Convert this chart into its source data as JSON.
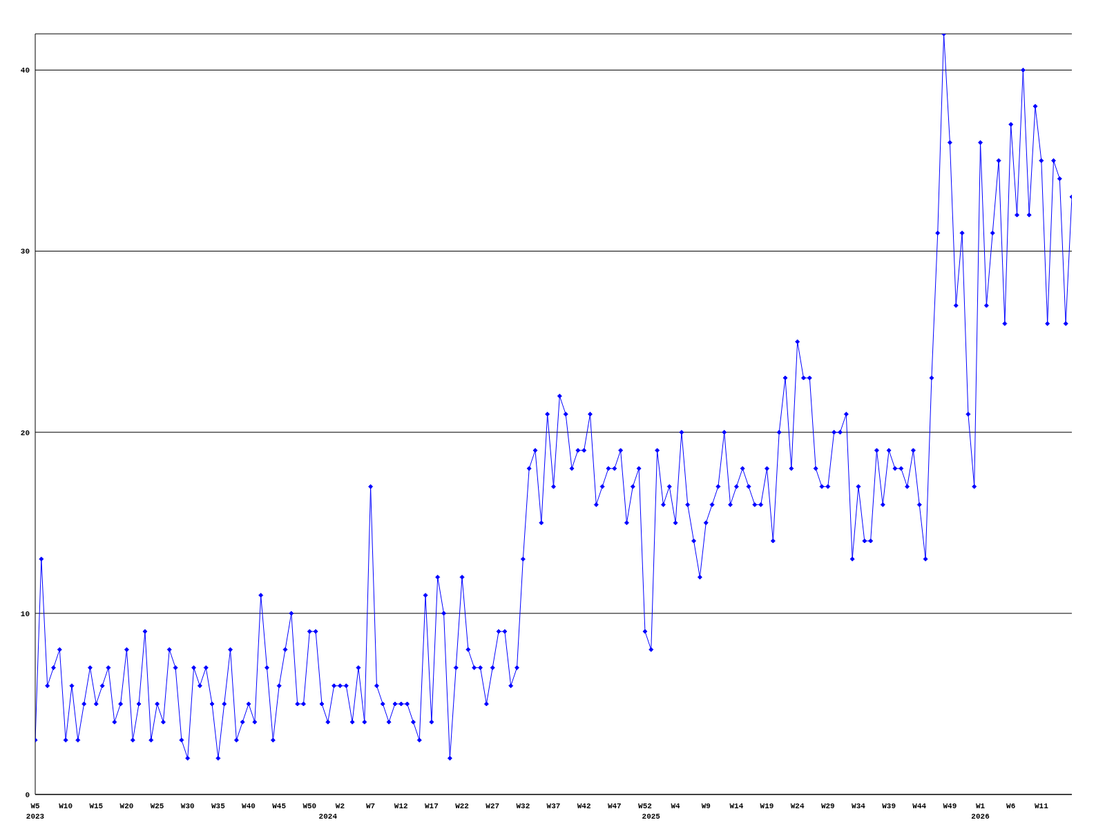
{
  "chart_data": {
    "type": "line",
    "categories": [
      "W5\n2023",
      null,
      null,
      null,
      null,
      "W10",
      null,
      null,
      null,
      null,
      "W15",
      null,
      null,
      null,
      null,
      "W20",
      null,
      null,
      null,
      null,
      "W25",
      null,
      null,
      null,
      null,
      "W30",
      null,
      null,
      null,
      null,
      "W35",
      null,
      null,
      null,
      null,
      "W40",
      null,
      null,
      null,
      null,
      "W45",
      null,
      null,
      null,
      null,
      "W50",
      null,
      null,
      "\n2024",
      null,
      "W2",
      null,
      null,
      null,
      null,
      "W7",
      null,
      null,
      null,
      null,
      "W12",
      null,
      null,
      null,
      null,
      "W17",
      null,
      null,
      null,
      null,
      "W22",
      null,
      null,
      null,
      null,
      "W27",
      null,
      null,
      null,
      null,
      "W32",
      null,
      null,
      null,
      null,
      "W37",
      null,
      null,
      null,
      null,
      "W42",
      null,
      null,
      null,
      null,
      "W47",
      null,
      null,
      null,
      null,
      "W52",
      "\n2025",
      null,
      null,
      null,
      "W4",
      null,
      null,
      null,
      null,
      "W9",
      null,
      null,
      null,
      null,
      "W14",
      null,
      null,
      null,
      null,
      "W19",
      null,
      null,
      null,
      null,
      "W24",
      null,
      null,
      null,
      null,
      "W29",
      null,
      null,
      null,
      null,
      "W34",
      null,
      null,
      null,
      null,
      "W39",
      null,
      null,
      null,
      null,
      "W44",
      null,
      null,
      null,
      null,
      "W49",
      null,
      null,
      null,
      null,
      "W1\n2026",
      null,
      null,
      null,
      null,
      "W6",
      null,
      null,
      null,
      null,
      "W11",
      null,
      null,
      null,
      null,
      null
    ],
    "series": [
      {
        "color": "#0000ff",
        "values": [
          3,
          13,
          6,
          7,
          8,
          3,
          6,
          3,
          5,
          7,
          5,
          6,
          7,
          4,
          5,
          8,
          3,
          5,
          9,
          3,
          5,
          4,
          8,
          7,
          3,
          2,
          7,
          6,
          7,
          5,
          2,
          5,
          8,
          3,
          4,
          5,
          4,
          11,
          7,
          3,
          6,
          8,
          10,
          5,
          5,
          9,
          9,
          5,
          4,
          6,
          6,
          6,
          4,
          7,
          4,
          17,
          6,
          5,
          4,
          5,
          5,
          5,
          4,
          3,
          11,
          4,
          12,
          10,
          2,
          7,
          12,
          8,
          7,
          7,
          5,
          7,
          9,
          9,
          6,
          7,
          13,
          18,
          19,
          15,
          21,
          17,
          22,
          21,
          18,
          19,
          19,
          21,
          16,
          17,
          18,
          18,
          19,
          15,
          17,
          18,
          9,
          8,
          19,
          16,
          17,
          15,
          20,
          16,
          14,
          12,
          15,
          16,
          17,
          20,
          16,
          17,
          18,
          17,
          16,
          16,
          18,
          14,
          20,
          23,
          18,
          25,
          23,
          23,
          18,
          17,
          17,
          20,
          20,
          21,
          13,
          17,
          14,
          14,
          19,
          16,
          19,
          18,
          18,
          17,
          19,
          16,
          13,
          23,
          31,
          42,
          36,
          27,
          31,
          21,
          17,
          36,
          27,
          31,
          35,
          26,
          37,
          32,
          40,
          32,
          38,
          35,
          26,
          35,
          34,
          26,
          33
        ]
      }
    ],
    "ylim": [
      0,
      42
    ],
    "yticks": [
      0,
      10,
      20,
      30,
      40
    ],
    "grid": "y",
    "marker": "diamond",
    "line_style": "solid"
  }
}
